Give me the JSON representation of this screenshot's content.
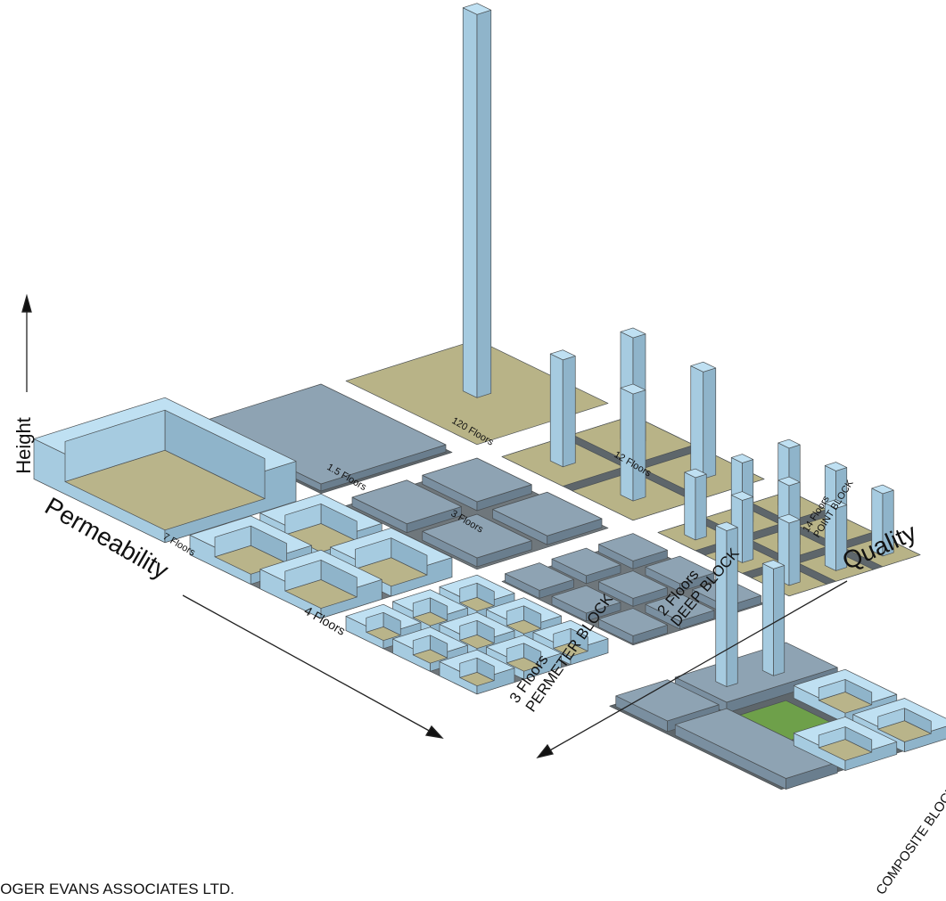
{
  "axes": {
    "height": "Height",
    "permeability": "Permeability",
    "quality": "Quality"
  },
  "blocks": [
    {
      "label": "7 Floors"
    },
    {
      "label": "1.5 Floors"
    },
    {
      "label": "120 Floors"
    },
    {
      "label": "4 Floors"
    },
    {
      "label": "3 Floors"
    },
    {
      "label": "12 Floors"
    },
    {
      "label": "3 Floors",
      "type": "PERMETER BLOCK"
    },
    {
      "label": "2 Floors",
      "type": "DEEP BLOCK"
    },
    {
      "label": "14 Floors",
      "type": "POINT BLOCK"
    }
  ],
  "composite": "COMPOSITE BLOCK",
  "credit": "ROGER EVANS ASSOCIATES LTD."
}
